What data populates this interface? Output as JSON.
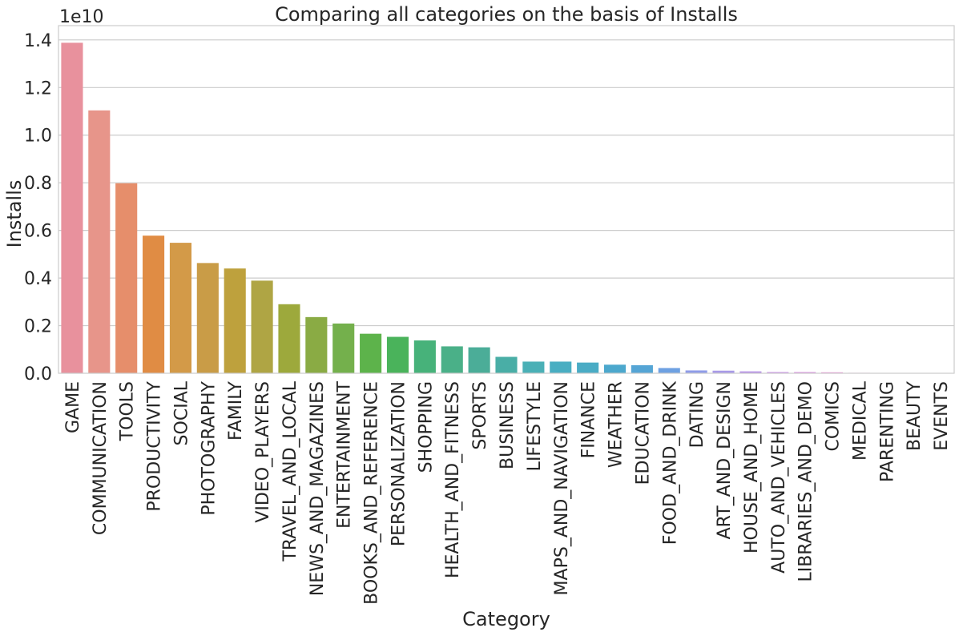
{
  "chart_data": {
    "type": "bar",
    "title": "Comparing all categories on the basis of Installs",
    "xlabel": "Category",
    "ylabel": "Installs",
    "y_offset_label": "1e10",
    "ylim": [
      0,
      1.46
    ],
    "y_ticks": [
      "0.0",
      "0.2",
      "0.4",
      "0.6",
      "0.8",
      "1.0",
      "1.2",
      "1.4"
    ],
    "y_tick_values": [
      0,
      0.2,
      0.4,
      0.6,
      0.8,
      1.0,
      1.2,
      1.4
    ],
    "grid": true,
    "legend": "none",
    "categories": [
      "GAME",
      "COMMUNICATION",
      "TOOLS",
      "PRODUCTIVITY",
      "SOCIAL",
      "PHOTOGRAPHY",
      "FAMILY",
      "VIDEO_PLAYERS",
      "TRAVEL_AND_LOCAL",
      "NEWS_AND_MAGAZINES",
      "ENTERTAINMENT",
      "BOOKS_AND_REFERENCE",
      "PERSONALIZATION",
      "SHOPPING",
      "HEALTH_AND_FITNESS",
      "SPORTS",
      "BUSINESS",
      "LIFESTYLE",
      "MAPS_AND_NAVIGATION",
      "FINANCE",
      "WEATHER",
      "EDUCATION",
      "FOOD_AND_DRINK",
      "DATING",
      "ART_AND_DESIGN",
      "HOUSE_AND_HOME",
      "AUTO_AND_VEHICLES",
      "LIBRARIES_AND_DEMO",
      "COMICS",
      "MEDICAL",
      "PARENTING",
      "BEAUTY",
      "EVENTS"
    ],
    "values": [
      1.388,
      1.104,
      0.798,
      0.578,
      0.548,
      0.463,
      0.44,
      0.389,
      0.29,
      0.236,
      0.209,
      0.166,
      0.153,
      0.138,
      0.113,
      0.109,
      0.069,
      0.049,
      0.049,
      0.045,
      0.036,
      0.034,
      0.022,
      0.012,
      0.011,
      0.008,
      0.005,
      0.005,
      0.004,
      0.002,
      0.001,
      0.0005,
      0.0002
    ],
    "colors": [
      "#e8919d",
      "#e7958a",
      "#e68e6b",
      "#e08c44",
      "#d39a48",
      "#c99c47",
      "#bea13d",
      "#afa544",
      "#9da93c",
      "#8aab44",
      "#74b04c",
      "#5db34b",
      "#4ab35b",
      "#47b27a",
      "#4ab088",
      "#4bad98",
      "#49aea6",
      "#4ab0b6",
      "#49aec2",
      "#4aacc5",
      "#4ca8cd",
      "#55a5d5",
      "#6ea1e2",
      "#8f9ce8",
      "#a89ae8",
      "#b793e8",
      "#c88be8",
      "#d98ce0",
      "#e98bd5",
      "#ee8bc7",
      "#ef8cb8",
      "#ee8daa",
      "#ed8fa0"
    ]
  }
}
